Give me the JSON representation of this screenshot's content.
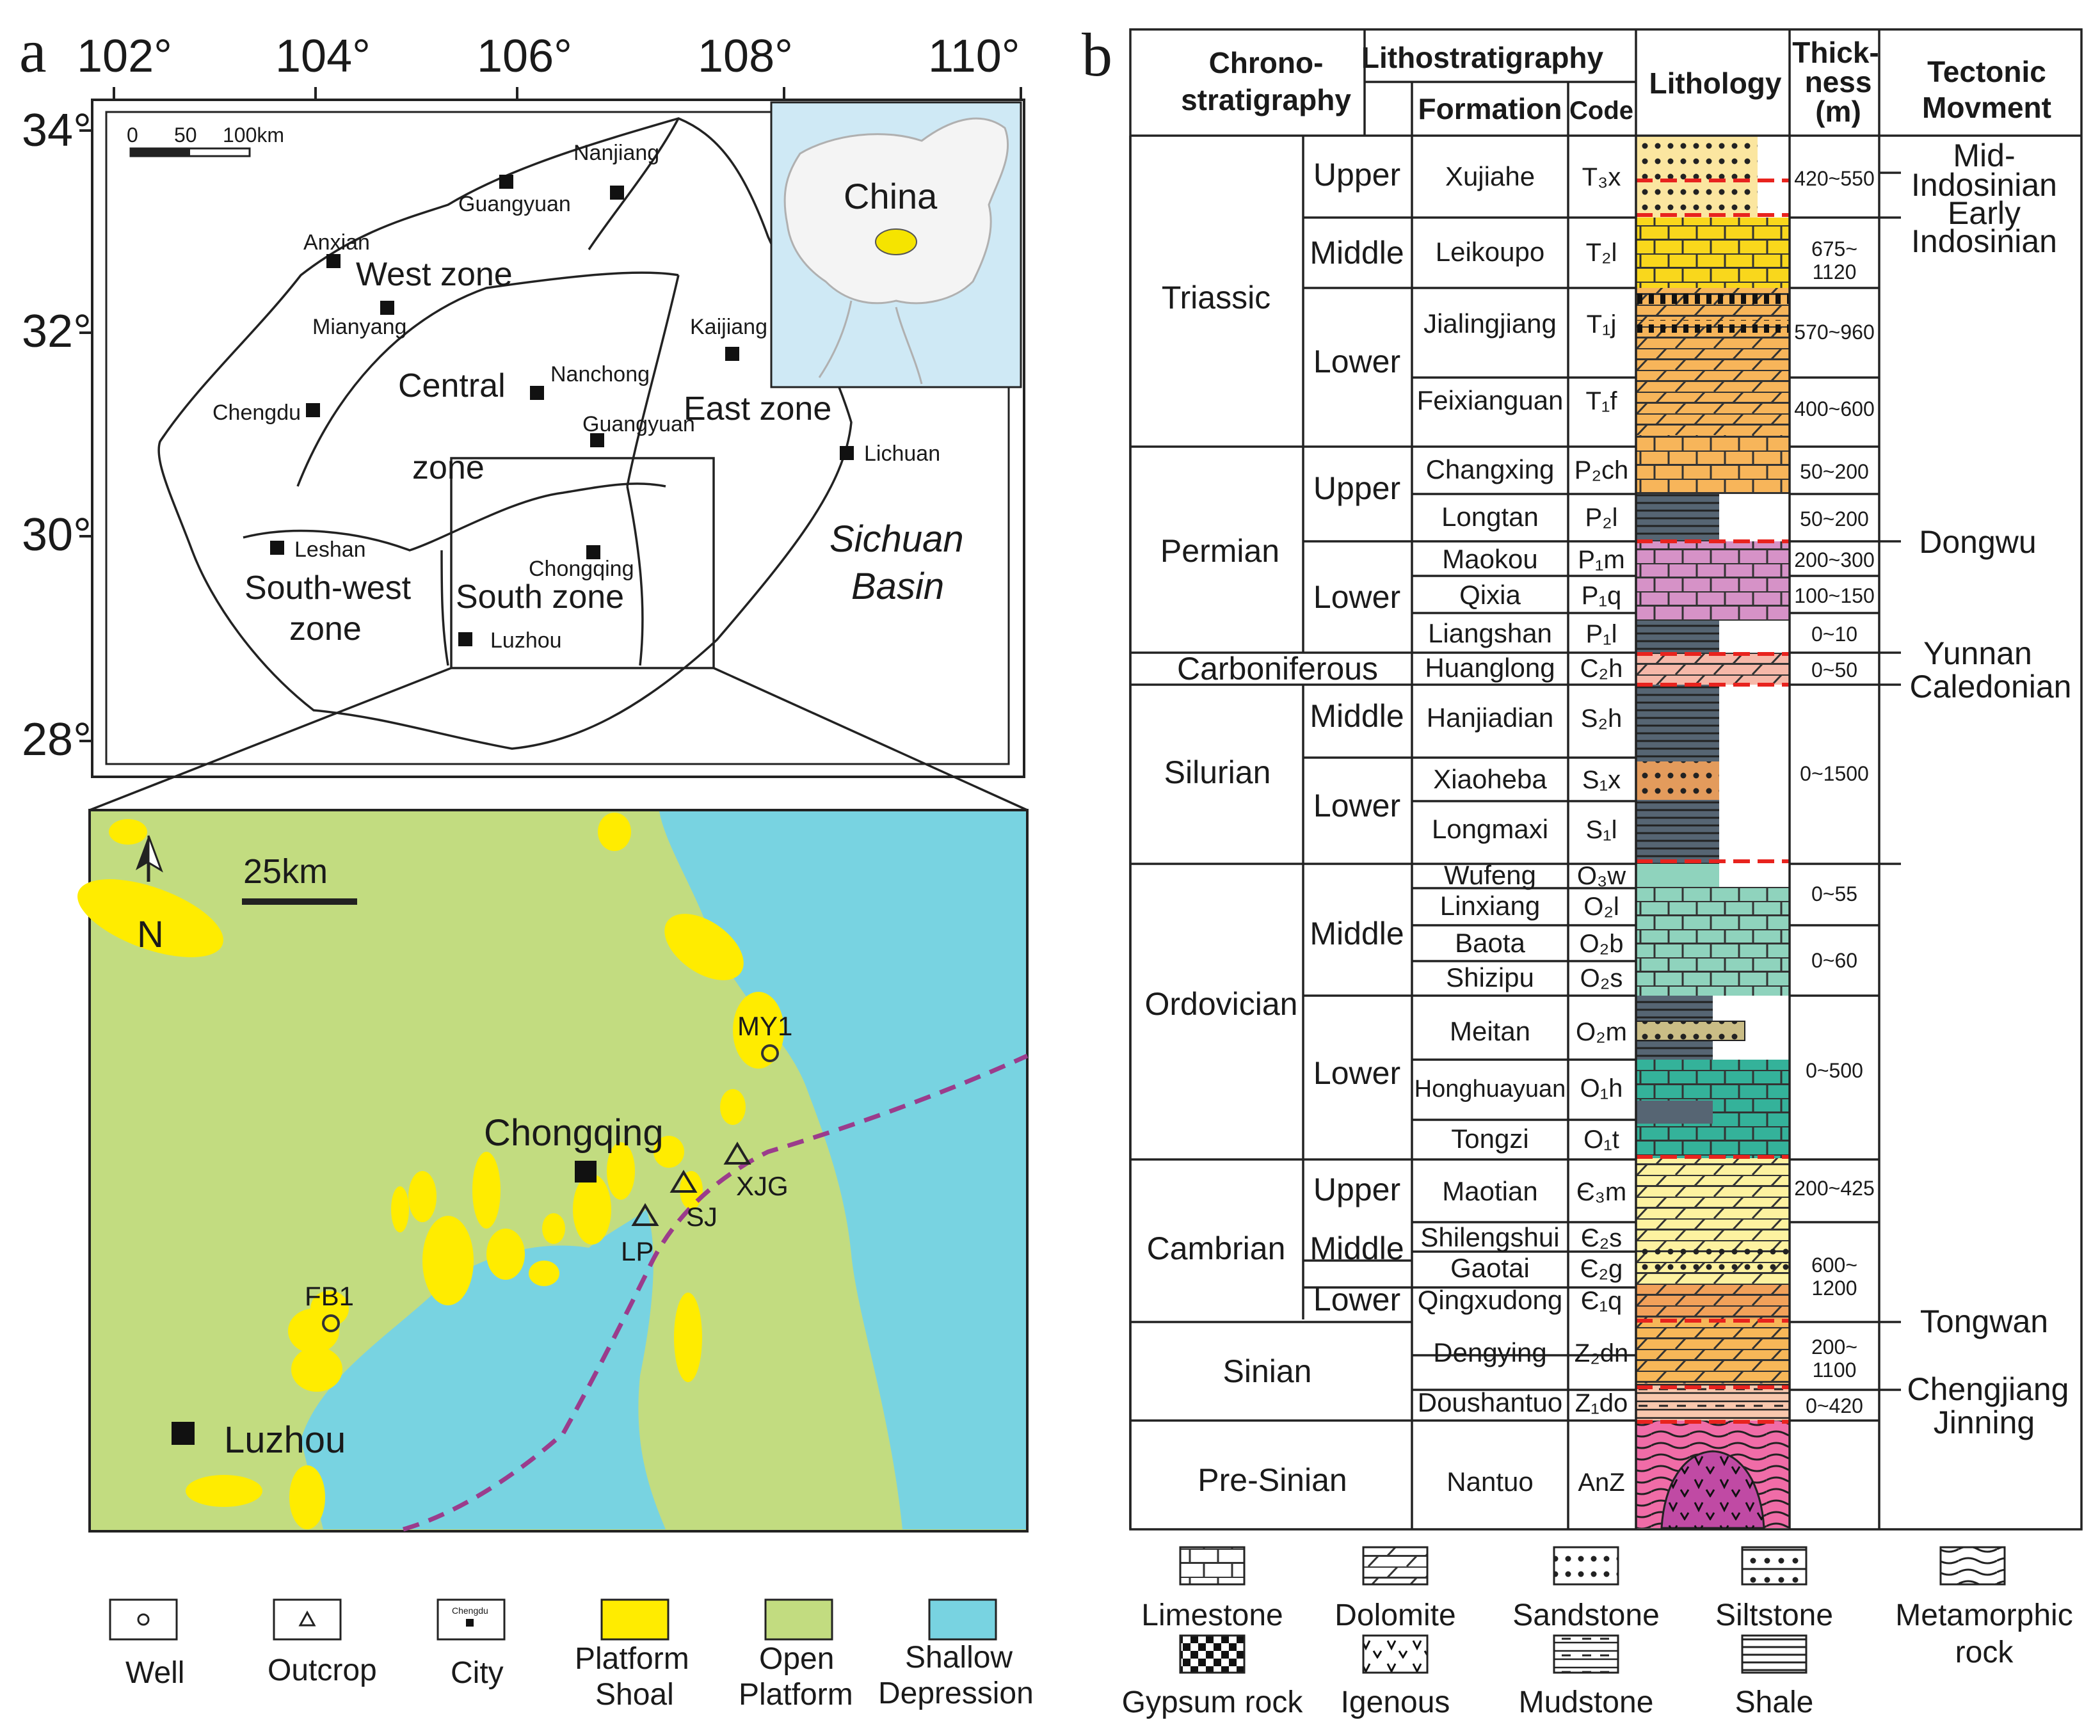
{
  "panel_labels": {
    "a": "a",
    "b": "b"
  },
  "map_top": {
    "lon_ticks": [
      "102°",
      "104°",
      "106°",
      "108°",
      "110°"
    ],
    "lat_ticks": [
      "34°",
      "32°",
      "30°",
      "28°"
    ],
    "scale": {
      "zero": "0",
      "mid": "50",
      "end": "100km"
    },
    "cities": [
      {
        "name": "Guangyuan"
      },
      {
        "name": "Nanjiang"
      },
      {
        "name": "Anxian"
      },
      {
        "name": "Mianyang"
      },
      {
        "name": "Nanchong"
      },
      {
        "name": "Kaijiang"
      },
      {
        "name": "Chengdu"
      },
      {
        "name": "Guangyuan"
      },
      {
        "name": "Lichuan"
      },
      {
        "name": "Leshan"
      },
      {
        "name": "Chongqing"
      },
      {
        "name": "Luzhou"
      }
    ],
    "zones": [
      {
        "label": "West zone"
      },
      {
        "label": "Central"
      },
      {
        "label": "zone"
      },
      {
        "label": "East zone"
      },
      {
        "label": "South-west"
      },
      {
        "label": "zone"
      },
      {
        "label": "South zone"
      }
    ],
    "basin_label": [
      "Sichuan",
      "Basin"
    ],
    "inset_label": "China",
    "colors": {
      "inset_sea": "#cfe9f5",
      "inset_land": "#f4f4f4",
      "highlight": "#f5e400"
    }
  },
  "map_bottom": {
    "north": "N",
    "scale_label": "25km",
    "cities": [
      {
        "name": "Chongqing"
      },
      {
        "name": "Luzhou"
      }
    ],
    "wells": [
      {
        "name": "MY1"
      },
      {
        "name": "FB1"
      }
    ],
    "outcrops": [
      {
        "name": "XJG"
      },
      {
        "name": "SJ"
      },
      {
        "name": "LP"
      }
    ],
    "colors": {
      "platform_shoal": "#ffec00",
      "open_platform": "#c2dc80",
      "shallow_depression": "#78d3e1",
      "boundary": "#9b3c8c"
    }
  },
  "map_legend": [
    {
      "icon": "well",
      "label": [
        "Well"
      ]
    },
    {
      "icon": "outcrop",
      "label": [
        "Outcrop"
      ]
    },
    {
      "icon": "city",
      "label": [
        "City"
      ],
      "sample": "Chengdu"
    },
    {
      "icon": "platform-shoal",
      "label": [
        "Platform",
        "Shoal"
      ]
    },
    {
      "icon": "open-platform",
      "label": [
        "Open",
        "Platform"
      ]
    },
    {
      "icon": "shallow-depression",
      "label": [
        "Shallow",
        "Depression"
      ]
    }
  ],
  "strat": {
    "headers": {
      "chrono": [
        "Chrono-",
        "stratigraphy"
      ],
      "litho": "Lithostratigraphy",
      "formation": "Formation",
      "code": "Code",
      "lithology": "Lithology",
      "thickness": [
        "Thick-",
        "ness",
        "(m)"
      ],
      "tectonic": [
        "Tectonic",
        "Movment"
      ]
    },
    "systems": [
      "Triassic",
      "Permian",
      "Carboniferous",
      "Silurian",
      "Ordovician",
      "Cambrian",
      "Sinian",
      "Pre-Sinian"
    ],
    "series": [
      "Upper",
      "Middle",
      "Lower",
      "Upper",
      "Lower",
      "Middle",
      "Lower",
      "Middle",
      "Lower",
      "Upper",
      "Middle",
      "Lower"
    ],
    "formations": [
      {
        "name": "Xujiahe",
        "code": "T₃x"
      },
      {
        "name": "Leikoupo",
        "code": "T₂l"
      },
      {
        "name": "Jialingjiang",
        "code": "T₁j"
      },
      {
        "name": "Feixianguan",
        "code": "T₁f"
      },
      {
        "name": "Changxing",
        "code": "P₂ch"
      },
      {
        "name": "Longtan",
        "code": "P₂l"
      },
      {
        "name": "Maokou",
        "code": "P₁m"
      },
      {
        "name": "Qixia",
        "code": "P₁q"
      },
      {
        "name": "Liangshan",
        "code": "P₁l"
      },
      {
        "name": "Huanglong",
        "code": "C₂h"
      },
      {
        "name": "Hanjiadian",
        "code": "S₂h"
      },
      {
        "name": "Xiaoheba",
        "code": "S₁x"
      },
      {
        "name": "Longmaxi",
        "code": "S₁l"
      },
      {
        "name": "Wufeng",
        "code": "O₃w"
      },
      {
        "name": "Linxiang",
        "code": "O₂l"
      },
      {
        "name": "Baota",
        "code": "O₂b"
      },
      {
        "name": "Shizipu",
        "code": "O₂s"
      },
      {
        "name": "Meitan",
        "code": "O₂m"
      },
      {
        "name": "Honghuayuan",
        "code": "O₁h"
      },
      {
        "name": "Tongzi",
        "code": "O₁t"
      },
      {
        "name": "Maotian",
        "code": "Є₃m"
      },
      {
        "name": "Shilengshui",
        "code": "Є₂s"
      },
      {
        "name": "Gaotai",
        "code": "Є₂g"
      },
      {
        "name": "Qingxudong",
        "code": "Є₁q"
      },
      {
        "name": "Dengying",
        "code": "Z₂dn"
      },
      {
        "name": "Doushantuo",
        "code": "Z₁do"
      },
      {
        "name": "Nantuo",
        "code": "AnZ"
      }
    ],
    "thickness": [
      [
        "420~550"
      ],
      [
        "675~",
        "1120"
      ],
      [
        "570~960"
      ],
      [
        "400~600"
      ],
      [
        "50~200"
      ],
      [
        "50~200"
      ],
      [
        "200~300"
      ],
      [
        "100~150"
      ],
      [
        "0~10"
      ],
      [
        "0~50"
      ],
      [
        "0~1500"
      ],
      [
        "0~55"
      ],
      [
        "0~60"
      ],
      [
        "0~500"
      ],
      [
        "200~425"
      ],
      [
        "600~",
        "1200"
      ],
      [
        "200~",
        "1100"
      ],
      [
        "0~420"
      ]
    ],
    "tectonic": [
      [
        "Mid-",
        "Indosinian"
      ],
      [
        "Early",
        "Indosinian"
      ],
      [
        "Dongwu"
      ],
      [
        "Yunnan"
      ],
      [
        "Caledonian"
      ],
      [
        "Tongwan"
      ],
      [
        "Chengjiang"
      ],
      [
        "Jinning"
      ]
    ],
    "lith_colors": {
      "sand_yellow": "#fbe6a0",
      "lime_yellow": "#f9d71c",
      "dolo_orange": "#f7b55a",
      "shale_gray": "#566573",
      "maokou_pink": "#d692c7",
      "huanglong_pink": "#f6b8a9",
      "teal": "#8fd3bd",
      "teal_dark": "#34b29a",
      "meitan_sand": "#cabd86",
      "cambrian_yellow": "#fdf2a0",
      "qingxu_orange": "#f2a15a",
      "sinian_orange": "#f7b758",
      "dou_pink": "#f8c7ad",
      "nantuo_pink": "#f06ca7",
      "igneous_purple": "#c04aa4",
      "unconformity": "#e8231e"
    }
  },
  "lith_legend": [
    {
      "key": "limestone",
      "label": "Limestone"
    },
    {
      "key": "dolomite",
      "label": "Dolomite"
    },
    {
      "key": "sandstone",
      "label": "Sandstone"
    },
    {
      "key": "siltstone",
      "label": "Siltstone"
    },
    {
      "key": "metamorphic",
      "label": [
        "Metamorphic",
        "rock"
      ]
    },
    {
      "key": "gypsum",
      "label": "Gypsum rock"
    },
    {
      "key": "igneous",
      "label": "Igenous"
    },
    {
      "key": "mudstone",
      "label": "Mudstone"
    },
    {
      "key": "shale",
      "label": "Shale"
    }
  ]
}
